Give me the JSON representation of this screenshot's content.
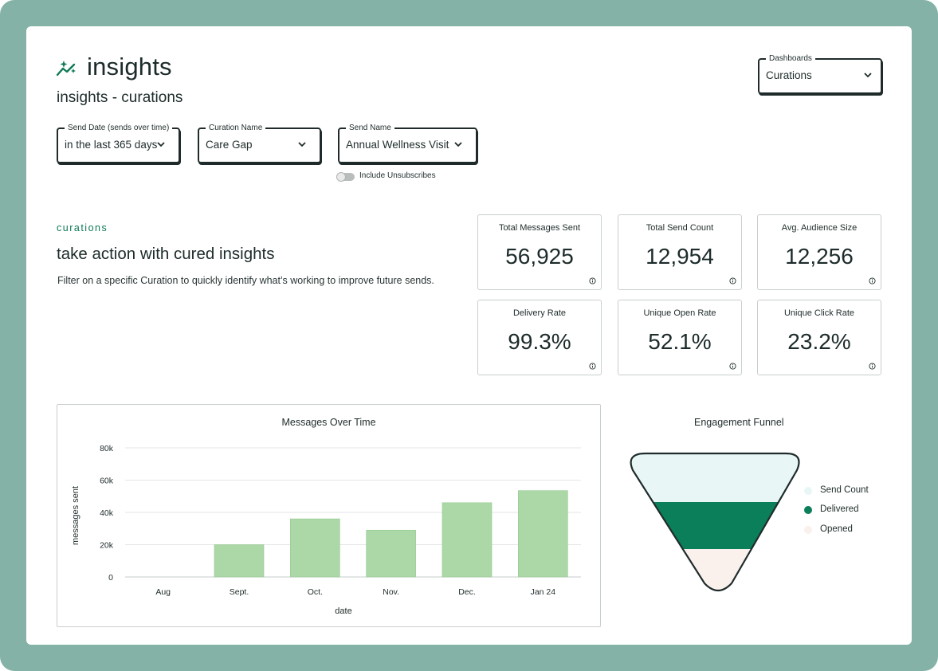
{
  "header": {
    "title": "insights",
    "subtitle": "insights - curations",
    "dashboards_label": "Dashboards",
    "dashboards_value": "Curations"
  },
  "filters": {
    "send_date": {
      "label": "Send Date (sends over time)",
      "value": "in the last 365 days"
    },
    "curation_name": {
      "label": "Curation Name",
      "value": "Care Gap"
    },
    "send_name": {
      "label": "Send Name",
      "value": "Annual Wellness Visit"
    },
    "unsubscribes_label": "Include Unsubscribes"
  },
  "intro": {
    "eyebrow": "curations",
    "headline": "take action with cured insights",
    "description": "Filter on a specific Curation to quickly identify what’s working to improve future sends."
  },
  "metrics": [
    {
      "label": "Total Messages Sent",
      "value": "56,925"
    },
    {
      "label": "Total Send Count",
      "value": "12,954"
    },
    {
      "label": "Avg. Audience Size",
      "value": "12,256"
    },
    {
      "label": "Delivery Rate",
      "value": "99.3%"
    },
    {
      "label": "Unique Open Rate",
      "value": "52.1%"
    },
    {
      "label": "Unique Click Rate",
      "value": "23.2%"
    }
  ],
  "colors": {
    "accent": "#0e7a56",
    "bar": "#acd8a7",
    "funnel_send": "#e8f6f6",
    "funnel_delivered": "#0b7e5a",
    "funnel_opened": "#faf0ec"
  },
  "chart_data": [
    {
      "type": "bar",
      "title": "Messages Over Time",
      "xlabel": "date",
      "ylabel": "messages sent",
      "categories": [
        "Aug",
        "Sept.",
        "Oct.",
        "Nov.",
        "Dec.",
        "Jan 24"
      ],
      "values": [
        0,
        20000,
        36000,
        29000,
        46000,
        53500
      ],
      "ylim": [
        0,
        80000
      ],
      "yticks": [
        0,
        20000,
        40000,
        60000,
        80000
      ],
      "ytick_labels": [
        "0",
        "20k",
        "40k",
        "60k",
        "80k"
      ],
      "grid": true
    },
    {
      "type": "funnel",
      "title": "Engagement Funnel",
      "stages": [
        "Send Count",
        "Delivered",
        "Opened"
      ]
    }
  ]
}
